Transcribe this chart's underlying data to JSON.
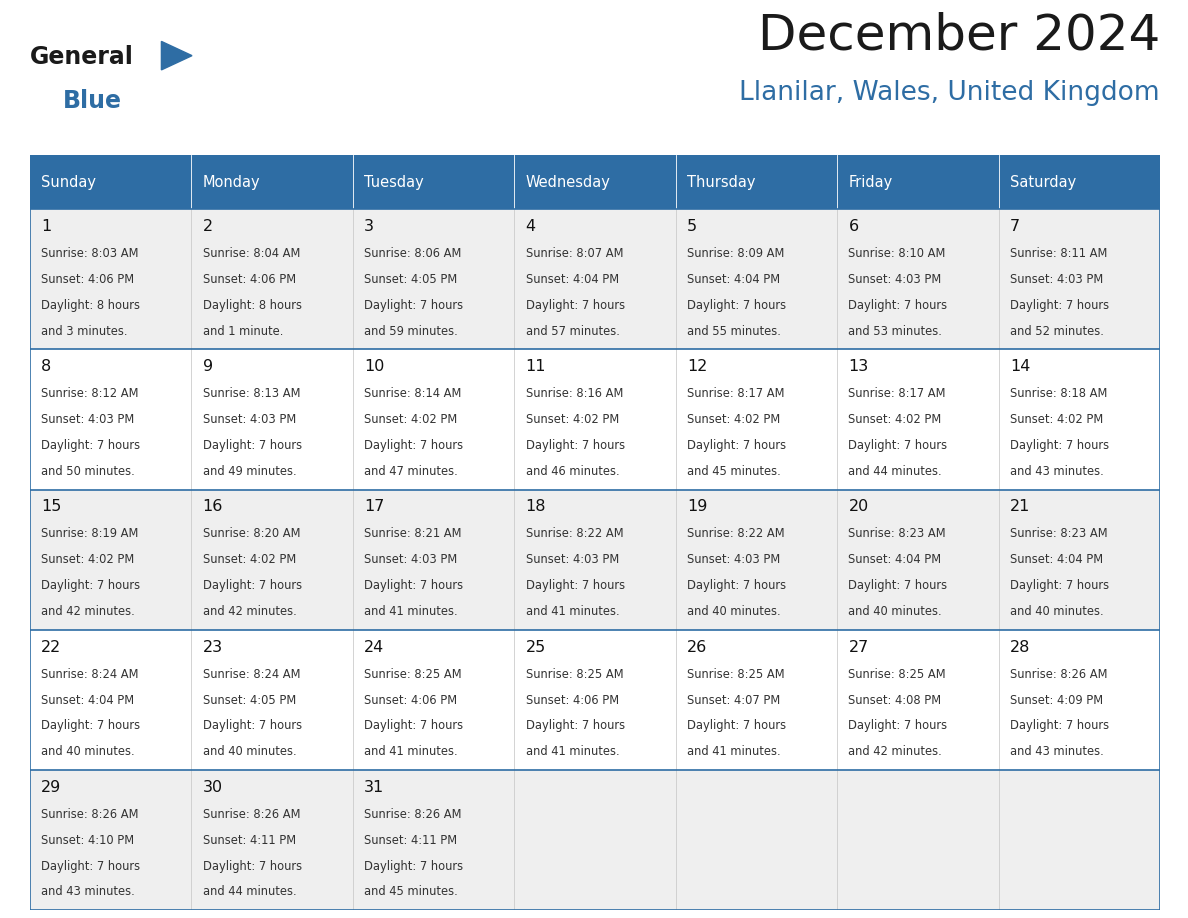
{
  "title": "December 2024",
  "subtitle": "Llanilar, Wales, United Kingdom",
  "header_bg_color": "#2E6DA4",
  "header_text_color": "#FFFFFF",
  "row_bg_odd": "#EFEFEF",
  "row_bg_even": "#FFFFFF",
  "border_color": "#2E6DA4",
  "cell_border_color": "#AAAAAA",
  "text_color": "#333333",
  "day_num_color": "#111111",
  "logo_general_color": "#1a1a1a",
  "logo_blue_color": "#2E6DA4",
  "subtitle_color": "#2E6DA4",
  "title_color": "#1a1a1a",
  "days_of_week": [
    "Sunday",
    "Monday",
    "Tuesday",
    "Wednesday",
    "Thursday",
    "Friday",
    "Saturday"
  ],
  "weeks": [
    [
      {
        "day": 1,
        "sunrise": "8:03 AM",
        "sunset": "4:06 PM",
        "daylight": "8 hours\nand 3 minutes."
      },
      {
        "day": 2,
        "sunrise": "8:04 AM",
        "sunset": "4:06 PM",
        "daylight": "8 hours\nand 1 minute."
      },
      {
        "day": 3,
        "sunrise": "8:06 AM",
        "sunset": "4:05 PM",
        "daylight": "7 hours\nand 59 minutes."
      },
      {
        "day": 4,
        "sunrise": "8:07 AM",
        "sunset": "4:04 PM",
        "daylight": "7 hours\nand 57 minutes."
      },
      {
        "day": 5,
        "sunrise": "8:09 AM",
        "sunset": "4:04 PM",
        "daylight": "7 hours\nand 55 minutes."
      },
      {
        "day": 6,
        "sunrise": "8:10 AM",
        "sunset": "4:03 PM",
        "daylight": "7 hours\nand 53 minutes."
      },
      {
        "day": 7,
        "sunrise": "8:11 AM",
        "sunset": "4:03 PM",
        "daylight": "7 hours\nand 52 minutes."
      }
    ],
    [
      {
        "day": 8,
        "sunrise": "8:12 AM",
        "sunset": "4:03 PM",
        "daylight": "7 hours\nand 50 minutes."
      },
      {
        "day": 9,
        "sunrise": "8:13 AM",
        "sunset": "4:03 PM",
        "daylight": "7 hours\nand 49 minutes."
      },
      {
        "day": 10,
        "sunrise": "8:14 AM",
        "sunset": "4:02 PM",
        "daylight": "7 hours\nand 47 minutes."
      },
      {
        "day": 11,
        "sunrise": "8:16 AM",
        "sunset": "4:02 PM",
        "daylight": "7 hours\nand 46 minutes."
      },
      {
        "day": 12,
        "sunrise": "8:17 AM",
        "sunset": "4:02 PM",
        "daylight": "7 hours\nand 45 minutes."
      },
      {
        "day": 13,
        "sunrise": "8:17 AM",
        "sunset": "4:02 PM",
        "daylight": "7 hours\nand 44 minutes."
      },
      {
        "day": 14,
        "sunrise": "8:18 AM",
        "sunset": "4:02 PM",
        "daylight": "7 hours\nand 43 minutes."
      }
    ],
    [
      {
        "day": 15,
        "sunrise": "8:19 AM",
        "sunset": "4:02 PM",
        "daylight": "7 hours\nand 42 minutes."
      },
      {
        "day": 16,
        "sunrise": "8:20 AM",
        "sunset": "4:02 PM",
        "daylight": "7 hours\nand 42 minutes."
      },
      {
        "day": 17,
        "sunrise": "8:21 AM",
        "sunset": "4:03 PM",
        "daylight": "7 hours\nand 41 minutes."
      },
      {
        "day": 18,
        "sunrise": "8:22 AM",
        "sunset": "4:03 PM",
        "daylight": "7 hours\nand 41 minutes."
      },
      {
        "day": 19,
        "sunrise": "8:22 AM",
        "sunset": "4:03 PM",
        "daylight": "7 hours\nand 40 minutes."
      },
      {
        "day": 20,
        "sunrise": "8:23 AM",
        "sunset": "4:04 PM",
        "daylight": "7 hours\nand 40 minutes."
      },
      {
        "day": 21,
        "sunrise": "8:23 AM",
        "sunset": "4:04 PM",
        "daylight": "7 hours\nand 40 minutes."
      }
    ],
    [
      {
        "day": 22,
        "sunrise": "8:24 AM",
        "sunset": "4:04 PM",
        "daylight": "7 hours\nand 40 minutes."
      },
      {
        "day": 23,
        "sunrise": "8:24 AM",
        "sunset": "4:05 PM",
        "daylight": "7 hours\nand 40 minutes."
      },
      {
        "day": 24,
        "sunrise": "8:25 AM",
        "sunset": "4:06 PM",
        "daylight": "7 hours\nand 41 minutes."
      },
      {
        "day": 25,
        "sunrise": "8:25 AM",
        "sunset": "4:06 PM",
        "daylight": "7 hours\nand 41 minutes."
      },
      {
        "day": 26,
        "sunrise": "8:25 AM",
        "sunset": "4:07 PM",
        "daylight": "7 hours\nand 41 minutes."
      },
      {
        "day": 27,
        "sunrise": "8:25 AM",
        "sunset": "4:08 PM",
        "daylight": "7 hours\nand 42 minutes."
      },
      {
        "day": 28,
        "sunrise": "8:26 AM",
        "sunset": "4:09 PM",
        "daylight": "7 hours\nand 43 minutes."
      }
    ],
    [
      {
        "day": 29,
        "sunrise": "8:26 AM",
        "sunset": "4:10 PM",
        "daylight": "7 hours\nand 43 minutes."
      },
      {
        "day": 30,
        "sunrise": "8:26 AM",
        "sunset": "4:11 PM",
        "daylight": "7 hours\nand 44 minutes."
      },
      {
        "day": 31,
        "sunrise": "8:26 AM",
        "sunset": "4:11 PM",
        "daylight": "7 hours\nand 45 minutes."
      },
      null,
      null,
      null,
      null
    ]
  ]
}
